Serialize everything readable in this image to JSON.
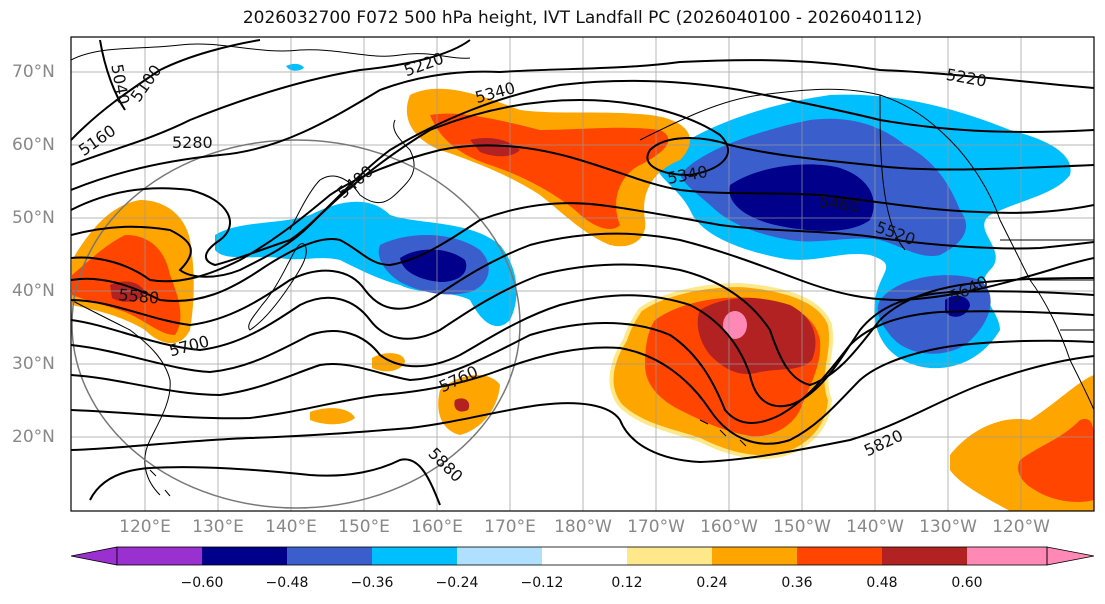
{
  "title": "2026032700 F072 500 hPa height, IVT Landfall PC (2026040100 - 2026040112)",
  "lat_labels": [
    "70°N",
    "60°N",
    "50°N",
    "40°N",
    "30°N",
    "20°N"
  ],
  "lon_labels": [
    "120°E",
    "130°E",
    "140°E",
    "150°E",
    "160°E",
    "170°E",
    "180°W",
    "170°W",
    "160°W",
    "150°W",
    "140°W",
    "130°W",
    "120°W"
  ],
  "contour_labels": [
    "5040",
    "5100",
    "5160",
    "5220",
    "5220",
    "5280",
    "5340",
    "5340",
    "5400",
    "5460",
    "5520",
    "5580",
    "5640",
    "5700",
    "5760",
    "5820",
    "5880"
  ],
  "colorbar": {
    "tick_labels": [
      "−0.60",
      "−0.48",
      "−0.36",
      "−0.24",
      "−0.12",
      "0.12",
      "0.24",
      "0.36",
      "0.48",
      "0.60"
    ],
    "colors": [
      "#9b30d0",
      "#00008b",
      "#3a5fcd",
      "#00bfff",
      "#b0e0ff",
      "#ffffff",
      "#ffe88a",
      "#ffa500",
      "#ff4500",
      "#b22222",
      "#ff88b4"
    ]
  }
}
